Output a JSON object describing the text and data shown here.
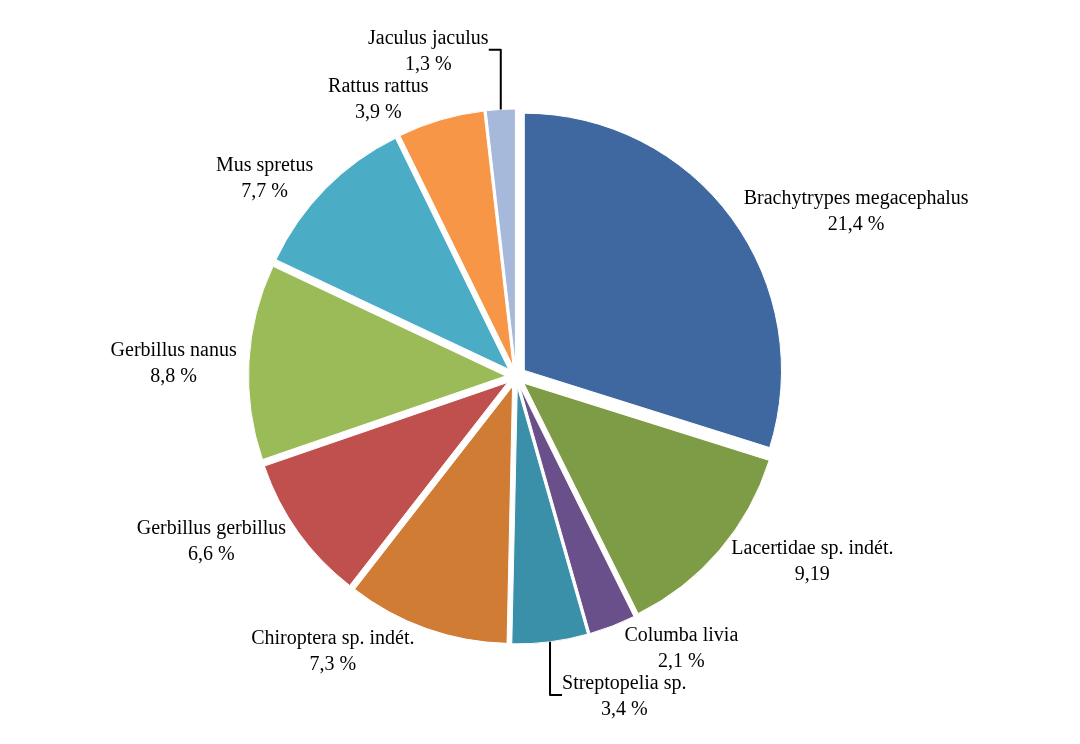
{
  "chart_data": {
    "type": "pie",
    "categories": [
      "Brachytrypes megacephalus",
      "Lacertidae sp. indét.",
      "Columba livia",
      "Streptopelia sp.",
      "Chiroptera sp. indét.",
      "Gerbillus gerbillus",
      "Gerbillus nanus",
      "Mus spretus",
      "Rattus rattus",
      "Jaculus jaculus"
    ],
    "values": [
      21.4,
      9.19,
      2.1,
      3.4,
      7.3,
      6.6,
      8.8,
      7.7,
      3.9,
      1.3
    ],
    "value_labels": [
      "21,4 %",
      "9,19",
      "2,1 %",
      "3,4 %",
      "7,3 %",
      "6,6 %",
      "8,8 %",
      "7,7 %",
      "3,9 %",
      "1,3 %"
    ],
    "colors": [
      "#4068a0",
      "#7e9c45",
      "#6a508a",
      "#3a90a8",
      "#d07c35",
      "#c0504d",
      "#9bbb59",
      "#4bacc6",
      "#f79646",
      "#a6b9db"
    ],
    "legend": false
  }
}
